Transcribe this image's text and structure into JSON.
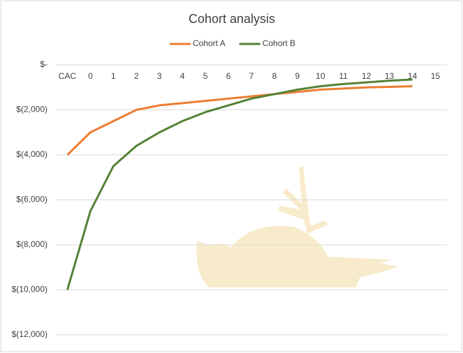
{
  "chart_data": {
    "type": "line",
    "title": "Cohort analysis",
    "categories": [
      "CAC",
      "0",
      "1",
      "2",
      "3",
      "4",
      "5",
      "6",
      "7",
      "8",
      "9",
      "10",
      "11",
      "12",
      "13",
      "14",
      "15"
    ],
    "series": [
      {
        "name": "Cohort A",
        "color": "#ed7d31",
        "values": [
          -4000,
          -3000,
          -2500,
          -2000,
          -1800,
          -1700,
          -1600,
          -1500,
          -1400,
          -1300,
          -1200,
          -1100,
          -1050,
          -1000,
          -975,
          -950,
          null
        ]
      },
      {
        "name": "Cohort B",
        "color": "#548235",
        "values": [
          -10000,
          -6500,
          -4500,
          -3600,
          -3000,
          -2500,
          -2100,
          -1800,
          -1500,
          -1300,
          -1100,
          -950,
          -850,
          -780,
          -700,
          -650,
          null
        ]
      }
    ],
    "ylim": [
      -12000,
      0
    ],
    "yticks": [
      {
        "value": 0,
        "label": "$-"
      },
      {
        "value": -2000,
        "label": "$(2,000)"
      },
      {
        "value": -4000,
        "label": "$(4,000)"
      },
      {
        "value": -6000,
        "label": "$(6,000)"
      },
      {
        "value": -8000,
        "label": "$(8,000)"
      },
      {
        "value": -10000,
        "label": "$(10,000)"
      },
      {
        "value": -12000,
        "label": "$(12,000)"
      }
    ],
    "grid": true,
    "legend": "top"
  }
}
